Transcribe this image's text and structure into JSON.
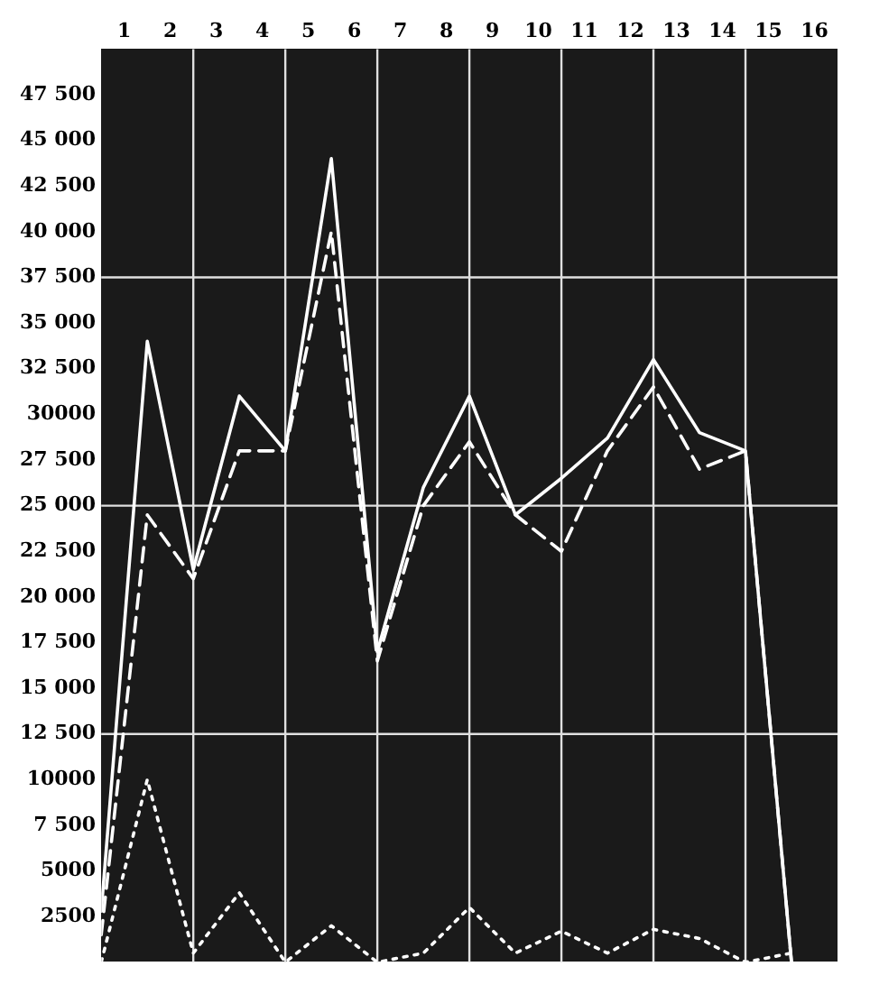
{
  "chart_data": {
    "type": "line",
    "x": [
      0,
      1,
      2,
      3,
      4,
      5,
      6,
      7,
      8,
      9,
      10,
      11,
      12,
      13,
      14,
      15
    ],
    "xlim": [
      0,
      16
    ],
    "xticks": [
      {
        "value": 0.5,
        "label": "1"
      },
      {
        "value": 1.5,
        "label": "2"
      },
      {
        "value": 2.5,
        "label": "3"
      },
      {
        "value": 3.5,
        "label": "4"
      },
      {
        "value": 4.5,
        "label": "5"
      },
      {
        "value": 5.5,
        "label": "6"
      },
      {
        "value": 6.5,
        "label": "7"
      },
      {
        "value": 7.5,
        "label": "8"
      },
      {
        "value": 8.5,
        "label": "9"
      },
      {
        "value": 9.5,
        "label": "10"
      },
      {
        "value": 10.5,
        "label": "11"
      },
      {
        "value": 11.5,
        "label": "12"
      },
      {
        "value": 12.5,
        "label": "13"
      },
      {
        "value": 13.5,
        "label": "14"
      },
      {
        "value": 14.5,
        "label": "15"
      },
      {
        "value": 15.5,
        "label": "16"
      }
    ],
    "ylim": [
      0,
      50000
    ],
    "yticks": [
      2500,
      5000,
      {
        "value": 7500,
        "label": "7 500"
      },
      10000,
      {
        "value": 12500,
        "label": "12 500"
      },
      {
        "value": 15000,
        "label": "15 000"
      },
      {
        "value": 17500,
        "label": "17 500"
      },
      {
        "value": 20000,
        "label": "20 000"
      },
      {
        "value": 22500,
        "label": "22 500"
      },
      {
        "value": 25000,
        "label": "25 000"
      },
      {
        "value": 27500,
        "label": "27 500"
      },
      30000,
      {
        "value": 32500,
        "label": "32 500"
      },
      {
        "value": 35000,
        "label": "35 000"
      },
      {
        "value": 37500,
        "label": "37 500"
      },
      {
        "value": 40000,
        "label": "40 000"
      },
      {
        "value": 42500,
        "label": "42 500"
      },
      {
        "value": 45000,
        "label": "45 000"
      },
      {
        "value": 47500,
        "label": "47 500"
      }
    ],
    "series": [
      {
        "color": "#ffffff",
        "line_style": "solid",
        "values": [
          2800,
          34000,
          21500,
          31000,
          28000,
          44000,
          17000,
          26000,
          31000,
          24500,
          26500,
          28700,
          33000,
          29000,
          28000,
          0
        ]
      },
      {
        "color": "#ffffff",
        "line_style": "dashed",
        "values": [
          1500,
          24500,
          21000,
          28000,
          28000,
          40000,
          16500,
          25000,
          28500,
          24500,
          22500,
          28000,
          31500,
          27000,
          28000,
          0
        ]
      },
      {
        "color": "#ffffff",
        "line_style": "dotted",
        "values": [
          0,
          10000,
          500,
          3800,
          0,
          2000,
          0,
          500,
          3000,
          500,
          1700,
          500,
          1800,
          1300,
          0,
          500
        ]
      }
    ],
    "ref_lines": [
      {
        "axis": "y",
        "value": 12500,
        "color": "#e0e0e0"
      },
      {
        "axis": "y",
        "value": 25000,
        "color": "#e0e0e0"
      },
      {
        "axis": "y",
        "value": 37500,
        "color": "#e0e0e0"
      },
      {
        "axis": "x",
        "value": 2,
        "color": "#e0e0e0"
      },
      {
        "axis": "x",
        "value": 4,
        "color": "#e0e0e0"
      },
      {
        "axis": "x",
        "value": 6,
        "color": "#e0e0e0"
      },
      {
        "axis": "x",
        "value": 8,
        "color": "#e0e0e0"
      },
      {
        "axis": "x",
        "value": 10,
        "color": "#e0e0e0"
      },
      {
        "axis": "x",
        "value": 12,
        "color": "#e0e0e0"
      },
      {
        "axis": "x",
        "value": 14,
        "color": "#e0e0e0"
      }
    ],
    "grid": false,
    "legend": false,
    "marker": "none"
  }
}
